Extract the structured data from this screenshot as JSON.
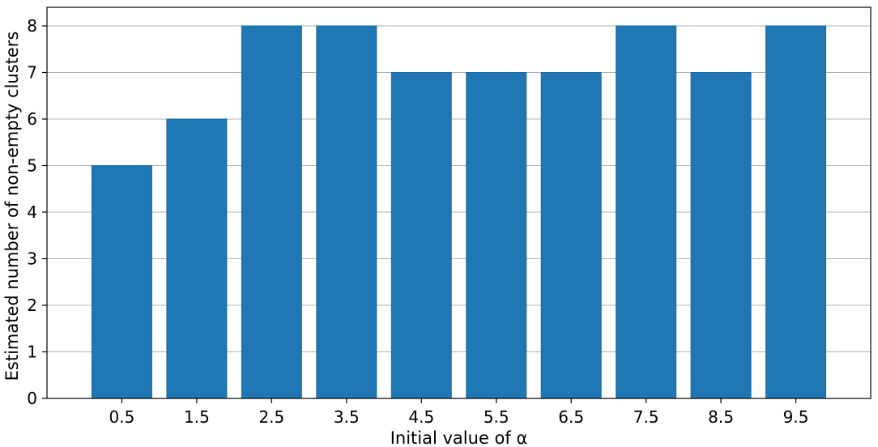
{
  "chart_data": {
    "type": "bar",
    "title": "",
    "xlabel": "Initial value of α",
    "ylabel": "Estimated number of non-empty clusters",
    "categories": [
      "0.5",
      "1.5",
      "2.5",
      "3.5",
      "4.5",
      "5.5",
      "6.5",
      "7.5",
      "8.5",
      "9.5"
    ],
    "values": [
      5,
      6,
      8,
      8,
      7,
      7,
      7,
      8,
      7,
      8
    ],
    "ylim": [
      0,
      8.4
    ],
    "yticks": [
      "0",
      "1",
      "2",
      "3",
      "4",
      "5",
      "6",
      "7",
      "8"
    ],
    "grid": "horizontal",
    "bar_color": "#1f77b4",
    "bar_edge_color": "#1a67a0"
  }
}
